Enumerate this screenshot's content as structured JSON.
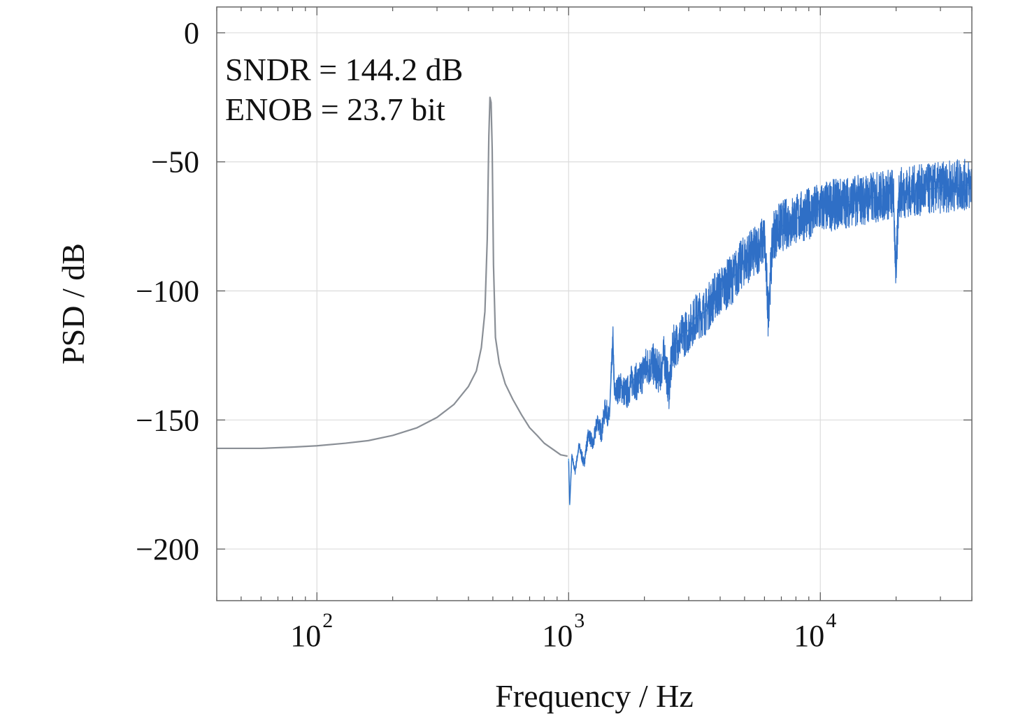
{
  "chart_data": {
    "type": "line",
    "title": "",
    "xlabel": "Frequency / Hz",
    "ylabel": "PSD / dB",
    "x_scale": "log",
    "xlim": [
      40,
      40000
    ],
    "ylim": [
      -220,
      10
    ],
    "grid": true,
    "x_ticks": [
      {
        "value": 100,
        "base": "10",
        "exp": "2"
      },
      {
        "value": 1000,
        "base": "10",
        "exp": "3"
      },
      {
        "value": 10000,
        "base": "10",
        "exp": "4"
      }
    ],
    "y_ticks": [
      {
        "value": 0,
        "label": "0"
      },
      {
        "value": -50,
        "label": "−50"
      },
      {
        "value": -100,
        "label": "−100"
      },
      {
        "value": -150,
        "label": "−150"
      },
      {
        "value": -200,
        "label": "−200"
      }
    ],
    "annotations": [
      "SNDR = 144.2 dB",
      "ENOB = 23.7 bit"
    ],
    "series": [
      {
        "color": "#8a8f96",
        "points": [
          [
            40,
            -161
          ],
          [
            60,
            -161
          ],
          [
            80,
            -160.5
          ],
          [
            100,
            -160
          ],
          [
            130,
            -159
          ],
          [
            160,
            -158
          ],
          [
            200,
            -156
          ],
          [
            250,
            -153
          ],
          [
            300,
            -149
          ],
          [
            350,
            -144
          ],
          [
            400,
            -137
          ],
          [
            430,
            -131
          ],
          [
            450,
            -122
          ],
          [
            465,
            -108
          ],
          [
            475,
            -80
          ],
          [
            482,
            -40
          ],
          [
            487,
            -25
          ],
          [
            492,
            -27
          ],
          [
            497,
            -45
          ],
          [
            503,
            -90
          ],
          [
            512,
            -118
          ],
          [
            530,
            -128
          ],
          [
            560,
            -136
          ],
          [
            600,
            -142
          ],
          [
            650,
            -148
          ],
          [
            700,
            -153
          ],
          [
            750,
            -156
          ],
          [
            800,
            -159
          ],
          [
            870,
            -161.5
          ],
          [
            930,
            -163.5
          ],
          [
            990,
            -164
          ]
        ]
      },
      {
        "color": "#2f6fc6",
        "points": [
          [
            1000,
            -165
          ],
          [
            1010,
            -183
          ],
          [
            1030,
            -164
          ],
          [
            1060,
            -170
          ],
          [
            1100,
            -160
          ],
          [
            1150,
            -167
          ],
          [
            1200,
            -155
          ],
          [
            1250,
            -160
          ],
          [
            1300,
            -150
          ],
          [
            1350,
            -155
          ],
          [
            1400,
            -145
          ],
          [
            1450,
            -150
          ],
          [
            1500,
            -118
          ],
          [
            1520,
            -140
          ],
          [
            1600,
            -137
          ],
          [
            1700,
            -140
          ],
          [
            1800,
            -134
          ],
          [
            1900,
            -136
          ],
          [
            2000,
            -130
          ],
          [
            2150,
            -128
          ],
          [
            2300,
            -132
          ],
          [
            2400,
            -125
          ],
          [
            2500,
            -138
          ],
          [
            2600,
            -122
          ],
          [
            2800,
            -118
          ],
          [
            3000,
            -115
          ],
          [
            3200,
            -110
          ],
          [
            3500,
            -108
          ],
          [
            3800,
            -102
          ],
          [
            4000,
            -100
          ],
          [
            4500,
            -95
          ],
          [
            5000,
            -88
          ],
          [
            5500,
            -85
          ],
          [
            6000,
            -80
          ],
          [
            6200,
            -108
          ],
          [
            6500,
            -78
          ],
          [
            7000,
            -75
          ],
          [
            8000,
            -72
          ],
          [
            9000,
            -70
          ],
          [
            10000,
            -68
          ],
          [
            12000,
            -66
          ],
          [
            14000,
            -65
          ],
          [
            16000,
            -64
          ],
          [
            18000,
            -63
          ],
          [
            19500,
            -62
          ],
          [
            20000,
            -95
          ],
          [
            20500,
            -62
          ],
          [
            25000,
            -61
          ],
          [
            30000,
            -60
          ],
          [
            35000,
            -59
          ],
          [
            40000,
            -59
          ]
        ],
        "noise": [
          [
            1000,
            1
          ],
          [
            2000,
            8
          ],
          [
            5000,
            10
          ],
          [
            10000,
            10
          ],
          [
            40000,
            10
          ]
        ]
      }
    ]
  }
}
